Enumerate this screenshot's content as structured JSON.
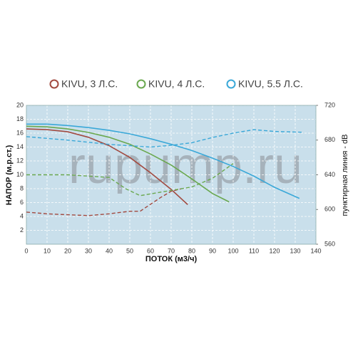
{
  "chart_data": {
    "type": "line",
    "watermark": "rupump.ru",
    "xlabel": "ПОТОК (м3/ч)",
    "ylabel": "НАПОР (м.р.ст.)",
    "y2label": "пунктирная линия - dB",
    "xlim": [
      0,
      140
    ],
    "xticks": [
      0,
      10,
      20,
      30,
      40,
      50,
      60,
      70,
      80,
      90,
      100,
      110,
      120,
      130,
      140
    ],
    "ylim": [
      0,
      20
    ],
    "yticks": [
      2,
      4,
      6,
      8,
      10,
      12,
      14,
      16,
      18,
      20
    ],
    "y2lim": [
      560,
      720
    ],
    "y2ticks": [
      560,
      600,
      640,
      680,
      720
    ],
    "grid": true,
    "series": [
      {
        "name": "KIVU, 3 Л.С.",
        "color": "#a24a40",
        "x": [
          0,
          10,
          20,
          30,
          40,
          50,
          60,
          70,
          78
        ],
        "values": [
          16.6,
          16.5,
          16.2,
          15.4,
          14.2,
          12.5,
          10.3,
          7.9,
          5.7
        ],
        "db": {
          "axis": "y2",
          "x": [
            0,
            10,
            20,
            30,
            40,
            50,
            55,
            60,
            65,
            70,
            75
          ],
          "values": [
            597,
            595,
            594,
            593,
            595,
            598,
            598,
            606,
            614,
            621,
            624
          ]
        }
      },
      {
        "name": "KIVU, 4 Л.С.",
        "color": "#6aa84f",
        "x": [
          0,
          10,
          20,
          30,
          40,
          50,
          60,
          70,
          80,
          90,
          98
        ],
        "values": [
          17.0,
          16.9,
          16.6,
          16.1,
          15.4,
          14.4,
          13.0,
          11.4,
          9.4,
          7.3,
          6.1
        ],
        "db": {
          "axis": "y2",
          "x": [
            0,
            20,
            40,
            48,
            55,
            70,
            80,
            90,
            100
          ],
          "values": [
            640,
            640,
            637,
            624,
            616,
            622,
            626,
            636,
            653
          ]
        }
      },
      {
        "name": "KIVU, 5.5 Л.С.",
        "color": "#3aa8d8",
        "x": [
          0,
          10,
          20,
          30,
          40,
          50,
          60,
          70,
          80,
          90,
          100,
          110,
          120,
          132
        ],
        "values": [
          17.3,
          17.3,
          17.1,
          16.8,
          16.4,
          15.9,
          15.2,
          14.4,
          13.5,
          12.4,
          11.2,
          9.8,
          8.2,
          6.6
        ],
        "db": {
          "axis": "y2",
          "x": [
            0,
            20,
            40,
            60,
            70,
            80,
            90,
            100,
            110,
            120,
            134
          ],
          "values": [
            684,
            680,
            675,
            672,
            674,
            677,
            683,
            688,
            692,
            690,
            689
          ]
        }
      }
    ]
  }
}
